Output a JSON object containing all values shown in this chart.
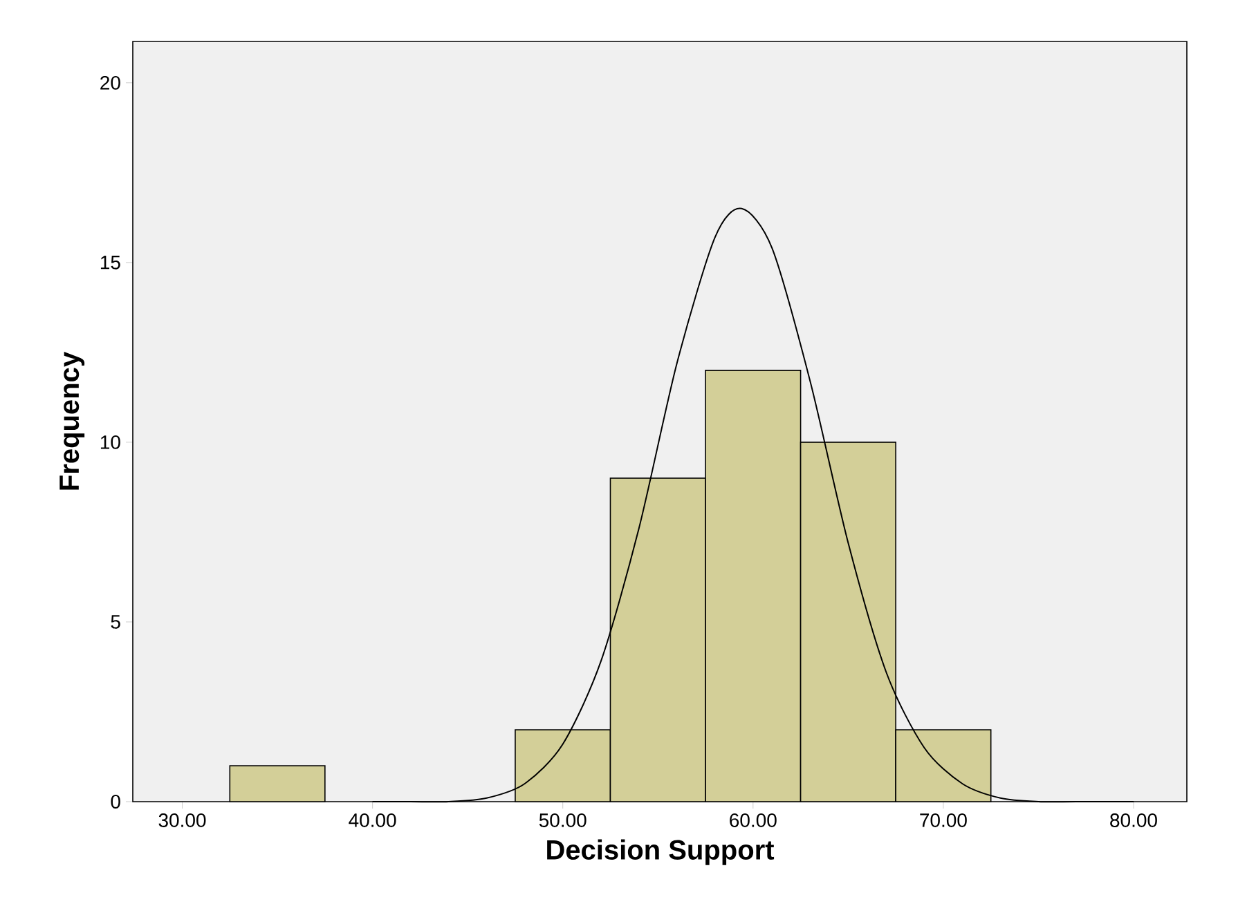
{
  "chart_data": {
    "type": "histogram",
    "xlabel": "Decision Support",
    "ylabel": "Frequency",
    "xlim": [
      27.4,
      82.8
    ],
    "ylim": [
      0,
      21.15
    ],
    "xticks": [
      {
        "value": 30,
        "label": "30.00"
      },
      {
        "value": 40,
        "label": "40.00"
      },
      {
        "value": 50,
        "label": "50.00"
      },
      {
        "value": 60,
        "label": "60.00"
      },
      {
        "value": 70,
        "label": "70.00"
      },
      {
        "value": 80,
        "label": "80.00"
      }
    ],
    "yticks": [
      0,
      5,
      10,
      15,
      20
    ],
    "series": [
      {
        "color": "#d3cf98",
        "bins": [
          32.5,
          37.5,
          42.5,
          47.5,
          52.5,
          57.5,
          62.5,
          67.5,
          72.5
        ],
        "values": [
          1,
          0,
          0,
          2,
          9,
          12,
          10,
          2
        ]
      },
      {
        "type": "line",
        "color": "#000000",
        "x": [
          40,
          42,
          44,
          46,
          48,
          50,
          52,
          54,
          56,
          58,
          59.4,
          61,
          63,
          65,
          67,
          69,
          71,
          73,
          75,
          77,
          80
        ],
        "values": [
          0.0,
          0.0,
          0.0,
          0.1,
          0.5,
          1.6,
          3.9,
          7.6,
          12.2,
          15.7,
          16.5,
          15.4,
          11.7,
          7.2,
          3.6,
          1.5,
          0.5,
          0.1,
          0.0,
          0.0,
          0.0
        ]
      }
    ]
  }
}
